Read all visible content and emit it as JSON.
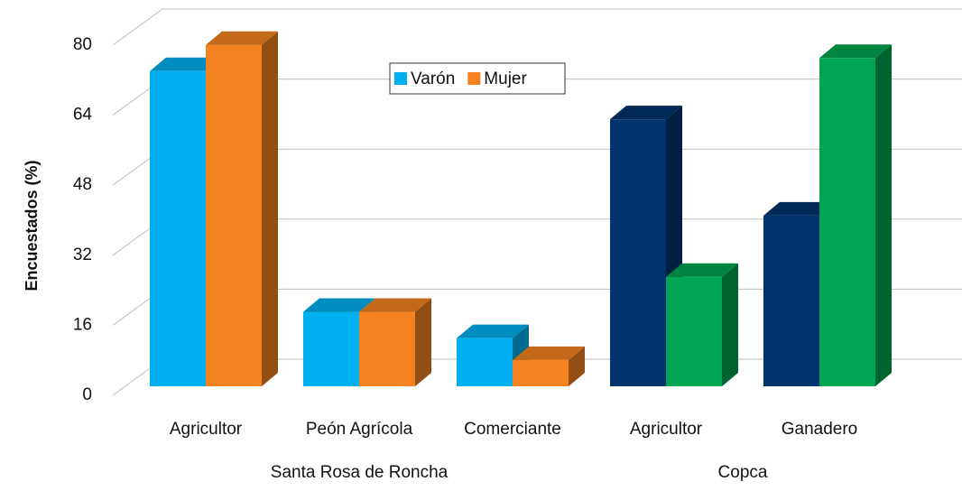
{
  "chart_data": {
    "type": "bar3d",
    "y_label": "Encuestados (%)",
    "groups": [
      {
        "name": "Santa Rosa de Roncha",
        "categories": [
          "Agricultor",
          "Peón Agrícola",
          "Comerciante"
        ]
      },
      {
        "name": "Copca",
        "categories": [
          "Agricultor",
          "Ganadero"
        ]
      }
    ],
    "series": [
      {
        "name": "Varón",
        "color": "#00b0f0",
        "colors": [
          "#00b0f0",
          "#00b0f0",
          "#00b0f0",
          "#00336e",
          "#00336e"
        ],
        "values": [
          72,
          17,
          11,
          61,
          39
        ]
      },
      {
        "name": "Mujer",
        "color": "#f58220",
        "colors": [
          "#f58220",
          "#f58220",
          "#f58220",
          "#00a651",
          "#00a651"
        ],
        "values": [
          78,
          17,
          6,
          25,
          75
        ]
      }
    ],
    "ylim": [
      0,
      80
    ],
    "yticks": [
      0,
      16,
      32,
      48,
      64,
      80
    ],
    "grid": true,
    "legend": "top"
  }
}
